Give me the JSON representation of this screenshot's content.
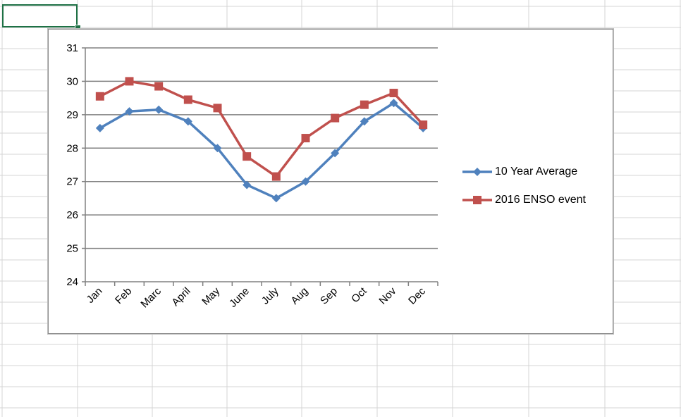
{
  "spreadsheet": {
    "selected_cell_color": "#1e7145",
    "gridline_color": "#d4d4d4"
  },
  "chart_data": {
    "type": "line",
    "title": "",
    "xlabel": "",
    "ylabel": "",
    "categories": [
      "Jan",
      "Feb",
      "Marc",
      "April",
      "May",
      "June",
      "July",
      "Aug",
      "Sep",
      "Oct",
      "Nov",
      "Dec"
    ],
    "ylim": [
      24,
      31
    ],
    "yticks": [
      "24",
      "25",
      "26",
      "27",
      "28",
      "29",
      "30",
      "31"
    ],
    "grid": "horizontal",
    "legend_position": "right",
    "series": [
      {
        "name": "10 Year Average",
        "color": "#4f81bd",
        "marker": "diamond",
        "values": [
          28.6,
          29.1,
          29.15,
          28.8,
          28.0,
          26.9,
          26.5,
          27.0,
          27.85,
          28.8,
          29.35,
          28.6
        ]
      },
      {
        "name": "2016 ENSO event",
        "color": "#c0504d",
        "marker": "square",
        "values": [
          29.55,
          30.0,
          29.85,
          29.45,
          29.2,
          27.75,
          27.15,
          28.3,
          28.9,
          29.3,
          29.65,
          28.7
        ]
      }
    ]
  }
}
